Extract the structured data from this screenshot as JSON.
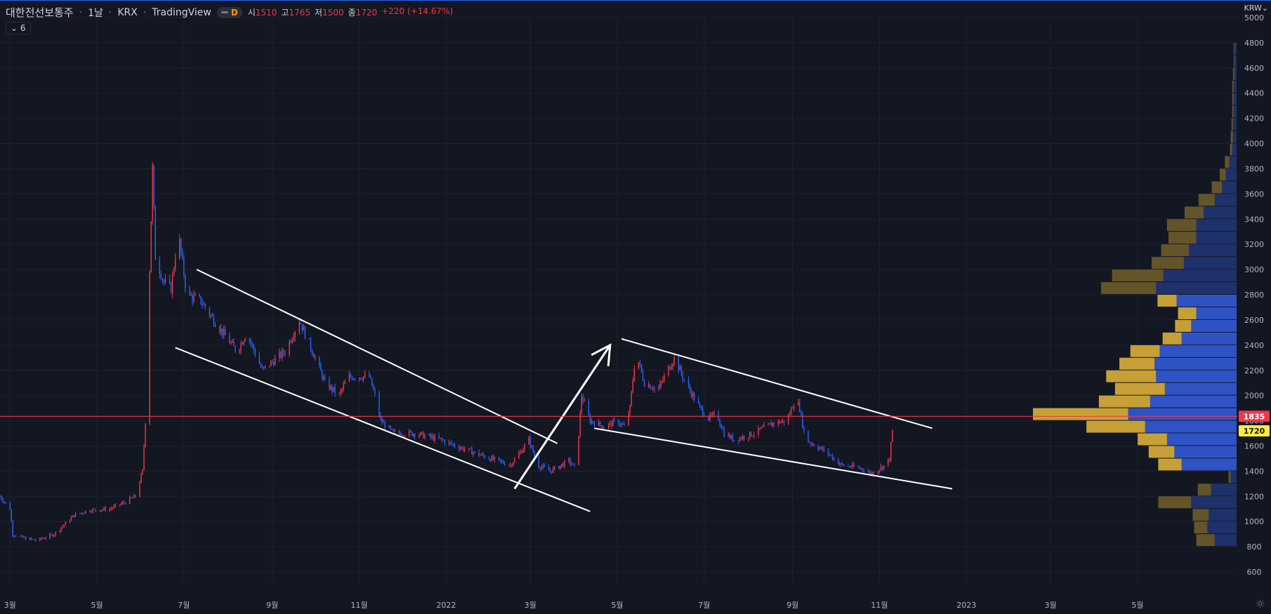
{
  "header": {
    "symbol": "대한전선보통주",
    "interval": "1날",
    "exchange": "KRX",
    "platform": "TradingView",
    "badge": "D",
    "open_label": "시",
    "open": "1510",
    "high_label": "고",
    "high": "1765",
    "low_label": "저",
    "low": "1500",
    "close_label": "종",
    "close": "1720",
    "change": "+220 (+14.67%)"
  },
  "indicator_toggle": {
    "icon": "chevron-down-icon",
    "count": "6"
  },
  "currency": "KRW",
  "colors": {
    "background": "#131722",
    "up": "#f23645",
    "down": "#2962ff",
    "hline": "#f23645",
    "volume_blue": "#2f53c4",
    "volume_gold": "#c6a036"
  },
  "chart_data": {
    "type": "candlestick",
    "y_range": [
      500,
      5000
    ],
    "y_ticks": [
      600,
      800,
      1000,
      1200,
      1400,
      1600,
      1800,
      2000,
      2200,
      2400,
      2600,
      2800,
      3000,
      3200,
      3400,
      3600,
      3800,
      4000,
      4200,
      4400,
      4600,
      4800,
      5000
    ],
    "x_range": [
      "2021-02-22",
      "2023-07-10"
    ],
    "x_ticks": [
      {
        "date": "2021-03-01",
        "label": "3월"
      },
      {
        "date": "2021-05-01",
        "label": "5월"
      },
      {
        "date": "2021-07-01",
        "label": "7월"
      },
      {
        "date": "2021-09-01",
        "label": "9월"
      },
      {
        "date": "2021-11-01",
        "label": "11월"
      },
      {
        "date": "2022-01-01",
        "label": "2022"
      },
      {
        "date": "2022-03-01",
        "label": "3월"
      },
      {
        "date": "2022-05-01",
        "label": "5월"
      },
      {
        "date": "2022-07-01",
        "label": "7월"
      },
      {
        "date": "2022-09-01",
        "label": "9월"
      },
      {
        "date": "2022-11-01",
        "label": "11월"
      },
      {
        "date": "2023-01-01",
        "label": "2023"
      },
      {
        "date": "2023-03-01",
        "label": "3월"
      },
      {
        "date": "2023-05-01",
        "label": "5월"
      }
    ],
    "price_path": [
      [
        "2021-02-22",
        1200
      ],
      [
        "2021-03-01",
        1100
      ],
      [
        "2021-03-03",
        900
      ],
      [
        "2021-03-10",
        870
      ],
      [
        "2021-03-20",
        850
      ],
      [
        "2021-04-01",
        900
      ],
      [
        "2021-04-15",
        1050
      ],
      [
        "2021-04-25",
        1090
      ],
      [
        "2021-05-10",
        1100
      ],
      [
        "2021-05-20",
        1150
      ],
      [
        "2021-05-28",
        1200
      ],
      [
        "2021-06-02",
        1400
      ],
      [
        "2021-06-05",
        2000
      ],
      [
        "2021-06-07",
        3000
      ],
      [
        "2021-06-09",
        3800
      ],
      [
        "2021-06-11",
        3100
      ],
      [
        "2021-06-17",
        2900
      ],
      [
        "2021-06-22",
        2850
      ],
      [
        "2021-06-27",
        3300
      ],
      [
        "2021-07-03",
        2800
      ],
      [
        "2021-07-13",
        2750
      ],
      [
        "2021-07-25",
        2550
      ],
      [
        "2021-08-07",
        2350
      ],
      [
        "2021-08-14",
        2500
      ],
      [
        "2021-08-25",
        2200
      ],
      [
        "2021-09-10",
        2350
      ],
      [
        "2021-09-20",
        2600
      ],
      [
        "2021-10-01",
        2300
      ],
      [
        "2021-10-08",
        2100
      ],
      [
        "2021-10-18",
        2000
      ],
      [
        "2021-10-24",
        2150
      ],
      [
        "2021-11-08",
        2150
      ],
      [
        "2021-11-12",
        2000
      ],
      [
        "2021-11-16",
        1800
      ],
      [
        "2021-11-25",
        1700
      ],
      [
        "2021-12-10",
        1700
      ],
      [
        "2021-12-28",
        1650
      ],
      [
        "2022-01-08",
        1600
      ],
      [
        "2022-01-20",
        1550
      ],
      [
        "2022-02-01",
        1500
      ],
      [
        "2022-02-15",
        1450
      ],
      [
        "2022-02-22",
        1550
      ],
      [
        "2022-02-28",
        1650
      ],
      [
        "2022-03-06",
        1450
      ],
      [
        "2022-03-15",
        1400
      ],
      [
        "2022-03-28",
        1480
      ],
      [
        "2022-04-02",
        1420
      ],
      [
        "2022-04-04",
        1700
      ],
      [
        "2022-04-06",
        2000
      ],
      [
        "2022-04-12",
        1800
      ],
      [
        "2022-04-22",
        1750
      ],
      [
        "2022-05-01",
        1800
      ],
      [
        "2022-05-06",
        1750
      ],
      [
        "2022-05-10",
        1900
      ],
      [
        "2022-05-14",
        2350
      ],
      [
        "2022-05-20",
        2100
      ],
      [
        "2022-05-30",
        2050
      ],
      [
        "2022-06-03",
        2150
      ],
      [
        "2022-06-10",
        2300
      ],
      [
        "2022-06-18",
        2100
      ],
      [
        "2022-06-28",
        1900
      ],
      [
        "2022-07-04",
        1820
      ],
      [
        "2022-07-10",
        1850
      ],
      [
        "2022-07-15",
        1700
      ],
      [
        "2022-07-22",
        1650
      ],
      [
        "2022-08-05",
        1700
      ],
      [
        "2022-08-18",
        1780
      ],
      [
        "2022-08-28",
        1800
      ],
      [
        "2022-09-03",
        1980
      ],
      [
        "2022-09-06",
        1900
      ],
      [
        "2022-09-10",
        1650
      ],
      [
        "2022-09-25",
        1550
      ],
      [
        "2022-10-05",
        1450
      ],
      [
        "2022-10-20",
        1420
      ],
      [
        "2022-10-26",
        1380
      ],
      [
        "2022-11-05",
        1450
      ],
      [
        "2022-11-08",
        1500
      ],
      [
        "2022-11-10",
        1720
      ]
    ],
    "trend_lines": [
      {
        "from": [
          "2021-07-10",
          3000
        ],
        "to": [
          "2022-03-20",
          1620
        ]
      },
      {
        "from": [
          "2021-06-25",
          2380
        ],
        "to": [
          "2022-04-12",
          1080
        ]
      },
      {
        "from": [
          "2022-05-04",
          2450
        ],
        "to": [
          "2022-12-08",
          1740
        ]
      },
      {
        "from": [
          "2022-04-15",
          1740
        ],
        "to": [
          "2022-12-22",
          1260
        ]
      }
    ],
    "arrow": {
      "from": [
        "2022-02-18",
        1260
      ],
      "to": [
        "2022-04-26",
        2400
      ]
    },
    "horizontal_line": 1835,
    "price_labels": [
      {
        "value": "1835",
        "kind": "line"
      },
      {
        "value": "1720",
        "kind": "last"
      }
    ],
    "volume_profile": {
      "bin_size": 100,
      "bins": [
        {
          "price": 850,
          "buy": 30,
          "sell": 25,
          "in_value_area": false
        },
        {
          "price": 950,
          "buy": 40,
          "sell": 18,
          "in_value_area": false
        },
        {
          "price": 1050,
          "buy": 38,
          "sell": 22,
          "in_value_area": false
        },
        {
          "price": 1150,
          "buy": 62,
          "sell": 45,
          "in_value_area": false
        },
        {
          "price": 1250,
          "buy": 35,
          "sell": 18,
          "in_value_area": false
        },
        {
          "price": 1350,
          "buy": 8,
          "sell": 3,
          "in_value_area": false
        },
        {
          "price": 1450,
          "buy": 75,
          "sell": 32,
          "in_value_area": true
        },
        {
          "price": 1550,
          "buy": 85,
          "sell": 35,
          "in_value_area": true
        },
        {
          "price": 1650,
          "buy": 95,
          "sell": 40,
          "in_value_area": true
        },
        {
          "price": 1750,
          "buy": 125,
          "sell": 80,
          "in_value_area": true
        },
        {
          "price": 1850,
          "buy": 148,
          "sell": 130,
          "in_value_area": true
        },
        {
          "price": 1950,
          "buy": 118,
          "sell": 70,
          "in_value_area": true
        },
        {
          "price": 2050,
          "buy": 98,
          "sell": 68,
          "in_value_area": true
        },
        {
          "price": 2150,
          "buy": 110,
          "sell": 68,
          "in_value_area": true
        },
        {
          "price": 2250,
          "buy": 112,
          "sell": 48,
          "in_value_area": true
        },
        {
          "price": 2350,
          "buy": 105,
          "sell": 40,
          "in_value_area": true
        },
        {
          "price": 2450,
          "buy": 75,
          "sell": 26,
          "in_value_area": true
        },
        {
          "price": 2550,
          "buy": 62,
          "sell": 22,
          "in_value_area": true
        },
        {
          "price": 2650,
          "buy": 55,
          "sell": 25,
          "in_value_area": true
        },
        {
          "price": 2750,
          "buy": 82,
          "sell": 26,
          "in_value_area": true
        },
        {
          "price": 2850,
          "buy": 110,
          "sell": 75,
          "in_value_area": false
        },
        {
          "price": 2950,
          "buy": 100,
          "sell": 70,
          "in_value_area": false
        },
        {
          "price": 3050,
          "buy": 72,
          "sell": 44,
          "in_value_area": false
        },
        {
          "price": 3150,
          "buy": 65,
          "sell": 38,
          "in_value_area": false
        },
        {
          "price": 3250,
          "buy": 55,
          "sell": 38,
          "in_value_area": false
        },
        {
          "price": 3350,
          "buy": 55,
          "sell": 40,
          "in_value_area": false
        },
        {
          "price": 3450,
          "buy": 45,
          "sell": 26,
          "in_value_area": false
        },
        {
          "price": 3550,
          "buy": 30,
          "sell": 22,
          "in_value_area": false
        },
        {
          "price": 3650,
          "buy": 20,
          "sell": 14,
          "in_value_area": false
        },
        {
          "price": 3750,
          "buy": 15,
          "sell": 8,
          "in_value_area": false
        },
        {
          "price": 3850,
          "buy": 10,
          "sell": 6,
          "in_value_area": false
        },
        {
          "price": 3950,
          "buy": 6,
          "sell": 3,
          "in_value_area": false
        },
        {
          "price": 4050,
          "buy": 5,
          "sell": 3,
          "in_value_area": false
        },
        {
          "price": 4150,
          "buy": 5,
          "sell": 2,
          "in_value_area": false
        },
        {
          "price": 4250,
          "buy": 4,
          "sell": 2,
          "in_value_area": false
        },
        {
          "price": 4350,
          "buy": 4,
          "sell": 2,
          "in_value_area": false
        },
        {
          "price": 4450,
          "buy": 4,
          "sell": 2,
          "in_value_area": false
        },
        {
          "price": 4550,
          "buy": 3,
          "sell": 2,
          "in_value_area": false
        },
        {
          "price": 4650,
          "buy": 3,
          "sell": 1,
          "in_value_area": false
        },
        {
          "price": 4750,
          "buy": 3,
          "sell": 1,
          "in_value_area": false
        }
      ]
    }
  }
}
